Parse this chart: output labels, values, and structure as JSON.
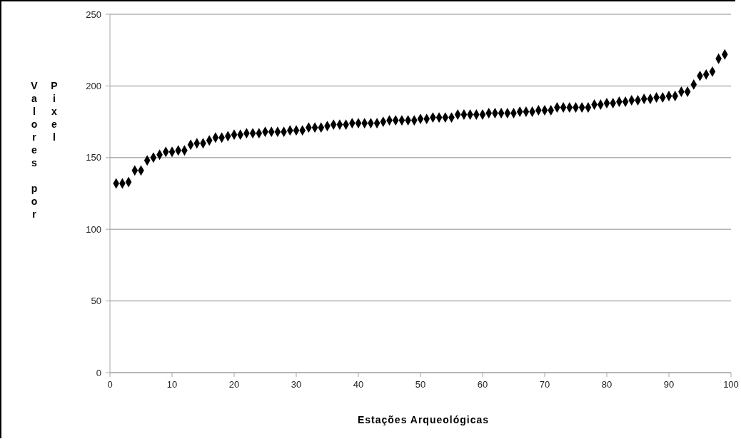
{
  "chart_data": {
    "type": "scatter",
    "xlabel": "Estações Arqueológicas",
    "ylabel": "Valores por Pixel",
    "x": [
      1,
      2,
      3,
      4,
      5,
      6,
      7,
      8,
      9,
      10,
      11,
      12,
      13,
      14,
      15,
      16,
      17,
      18,
      19,
      20,
      21,
      22,
      23,
      24,
      25,
      26,
      27,
      28,
      29,
      30,
      31,
      32,
      33,
      34,
      35,
      36,
      37,
      38,
      39,
      40,
      41,
      42,
      43,
      44,
      45,
      46,
      47,
      48,
      49,
      50,
      51,
      52,
      53,
      54,
      55,
      56,
      57,
      58,
      59,
      60,
      61,
      62,
      63,
      64,
      65,
      66,
      67,
      68,
      69,
      70,
      71,
      72,
      73,
      74,
      75,
      76,
      77,
      78,
      79,
      80,
      81,
      82,
      83,
      84,
      85,
      86,
      87,
      88,
      89,
      90,
      91,
      92,
      93,
      94,
      95,
      96,
      97,
      98,
      99
    ],
    "series": [
      {
        "color": "#000000",
        "values": [
          132,
          132,
          133,
          141,
          141,
          148,
          150,
          152,
          154,
          154,
          155,
          155,
          159,
          160,
          160,
          162,
          164,
          164,
          165,
          166,
          166,
          167,
          167,
          167,
          168,
          168,
          168,
          168,
          169,
          169,
          169,
          171,
          171,
          171,
          172,
          173,
          173,
          173,
          174,
          174,
          174,
          174,
          174,
          175,
          176,
          176,
          176,
          176,
          176,
          177,
          177,
          178,
          178,
          178,
          178,
          180,
          180,
          180,
          180,
          180,
          181,
          181,
          181,
          181,
          181,
          182,
          182,
          182,
          183,
          183,
          183,
          185,
          185,
          185,
          185,
          185,
          185,
          187,
          187,
          188,
          188,
          189,
          189,
          190,
          190,
          191,
          191,
          192,
          192,
          193,
          193,
          196,
          196,
          201,
          207,
          208,
          210,
          219,
          222
        ]
      }
    ],
    "xlim": [
      0,
      100
    ],
    "xticks": [
      0,
      10,
      20,
      30,
      40,
      50,
      60,
      70,
      80,
      90,
      100
    ],
    "ylim": [
      0,
      250
    ],
    "yticks": [
      0,
      50,
      100,
      150,
      200,
      250
    ],
    "grid": "y",
    "marker": "diamond",
    "legend": false
  }
}
